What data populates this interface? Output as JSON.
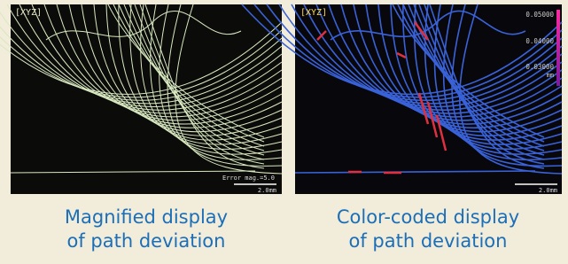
{
  "panels": [
    {
      "label": "[XYZ]",
      "annotation": "Error mag.=5.0",
      "scale": "2.0mm",
      "caption": [
        "Magnified display",
        "of path deviation"
      ]
    },
    {
      "label": "[XYZ]",
      "legend": [
        "0.05000",
        "0.04000",
        "0.03000",
        "mm"
      ],
      "scale": "2.0mm",
      "caption": [
        "Color-coded display",
        "of path deviation"
      ]
    }
  ]
}
